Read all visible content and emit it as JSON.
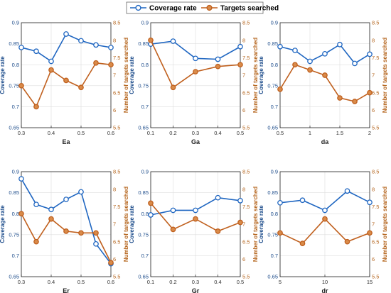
{
  "legend": {
    "coverage_label": "Coverage rate",
    "targets_label": "Targets searched"
  },
  "colors": {
    "coverage": "#1f66c1",
    "targets": "#c0601e",
    "targets_fill": "#d98b4a",
    "grid": "#dddddd",
    "axis": "#222222"
  },
  "chart_data": [
    {
      "type": "line",
      "xlabel": "Ea",
      "ylabel_left": "Coverage rate",
      "ylabel_right": "Number of targets searched",
      "xlim": [
        0.3,
        0.6
      ],
      "xticks": [
        "0.3",
        "0.4",
        "0.5",
        "0.6"
      ],
      "ylim_left": [
        0.65,
        0.9
      ],
      "yticks_left": [
        "0.65",
        "0.7",
        "0.75",
        "0.8",
        "0.85",
        "0.9"
      ],
      "ylim_right": [
        5.5,
        8.5
      ],
      "yticks_right": [
        "5.5",
        "6",
        "6.5",
        "7",
        "7.5",
        "8",
        "8.5"
      ],
      "grid": true,
      "x": [
        0.3,
        0.35,
        0.4,
        0.45,
        0.5,
        0.55,
        0.6
      ],
      "series": [
        {
          "name": "Coverage rate",
          "axis": "left",
          "values": [
            0.841,
            0.832,
            0.808,
            0.873,
            0.857,
            0.847,
            0.841
          ]
        },
        {
          "name": "Targets searched",
          "axis": "right",
          "values": [
            6.7,
            6.1,
            7.15,
            6.85,
            6.65,
            7.35,
            7.3
          ]
        }
      ]
    },
    {
      "type": "line",
      "xlabel": "Ga",
      "ylabel_left": "Coverage rate",
      "ylabel_right": "Number of targets searched",
      "xlim": [
        0.1,
        0.5
      ],
      "xticks": [
        "0.1",
        "0.2",
        "0.3",
        "0.4",
        "0.5"
      ],
      "ylim_left": [
        0.65,
        0.9
      ],
      "yticks_left": [
        "0.65",
        "0.7",
        "0.75",
        "0.8",
        "0.85",
        "0.9"
      ],
      "ylim_right": [
        5.5,
        8.5
      ],
      "yticks_right": [
        "5.5",
        "6",
        "6.5",
        "7",
        "7.5",
        "8",
        "8.5"
      ],
      "grid": true,
      "x": [
        0.1,
        0.2,
        0.3,
        0.4,
        0.5
      ],
      "series": [
        {
          "name": "Coverage rate",
          "axis": "left",
          "values": [
            0.849,
            0.856,
            0.815,
            0.813,
            0.843
          ]
        },
        {
          "name": "Targets searched",
          "axis": "right",
          "values": [
            8.0,
            6.65,
            7.1,
            7.25,
            7.3
          ]
        }
      ]
    },
    {
      "type": "line",
      "xlabel": "da",
      "ylabel_left": "Coverage rate",
      "ylabel_right": "Number of targets searched",
      "xlim": [
        0.5,
        2
      ],
      "xticks": [
        "0.5",
        "1",
        "1.5",
        "2"
      ],
      "ylim_left": [
        0.65,
        0.9
      ],
      "yticks_left": [
        "0.65",
        "0.7",
        "0.75",
        "0.8",
        "0.85",
        "0.9"
      ],
      "ylim_right": [
        5.5,
        8.5
      ],
      "yticks_right": [
        "5.5",
        "6",
        "6.5",
        "7",
        "7.5",
        "8",
        "8.5"
      ],
      "grid": true,
      "x": [
        0.5,
        0.75,
        1.0,
        1.25,
        1.5,
        1.75,
        2.0
      ],
      "series": [
        {
          "name": "Coverage rate",
          "axis": "left",
          "values": [
            0.843,
            0.834,
            0.808,
            0.826,
            0.848,
            0.803,
            0.825
          ]
        },
        {
          "name": "Targets searched",
          "axis": "right",
          "values": [
            6.6,
            7.3,
            7.15,
            7.0,
            6.35,
            6.25,
            6.5
          ]
        }
      ]
    },
    {
      "type": "line",
      "xlabel": "Er",
      "ylabel_left": "Coverage rate",
      "ylabel_right": "Number of targets searched",
      "xlim": [
        0.3,
        0.6
      ],
      "xticks": [
        "0.3",
        "0.4",
        "0.5",
        "0.6"
      ],
      "ylim_left": [
        0.65,
        0.9
      ],
      "yticks_left": [
        "0.65",
        "0.7",
        "0.75",
        "0.8",
        "0.85",
        "0.9"
      ],
      "ylim_right": [
        5.5,
        8.5
      ],
      "yticks_right": [
        "5.5",
        "6",
        "6.5",
        "7",
        "7.5",
        "8",
        "8.5"
      ],
      "grid": true,
      "x": [
        0.3,
        0.35,
        0.4,
        0.45,
        0.5,
        0.55,
        0.6
      ],
      "series": [
        {
          "name": "Coverage rate",
          "axis": "left",
          "values": [
            0.883,
            0.822,
            0.81,
            0.834,
            0.852,
            0.728,
            0.681
          ]
        },
        {
          "name": "Targets searched",
          "axis": "right",
          "values": [
            7.3,
            6.5,
            7.15,
            6.8,
            6.75,
            6.75,
            5.9
          ]
        }
      ]
    },
    {
      "type": "line",
      "xlabel": "Gr",
      "ylabel_left": "Coverage rate",
      "ylabel_right": "Number of targets searched",
      "xlim": [
        0.1,
        0.5
      ],
      "xticks": [
        "0.1",
        "0.2",
        "0.3",
        "0.4",
        "0.5"
      ],
      "ylim_left": [
        0.65,
        0.9
      ],
      "yticks_left": [
        "0.65",
        "0.7",
        "0.75",
        "0.8",
        "0.85",
        "0.9"
      ],
      "ylim_right": [
        5.5,
        8.5
      ],
      "yticks_right": [
        "5.5",
        "6",
        "6.5",
        "7",
        "7.5",
        "8",
        "8.5"
      ],
      "grid": true,
      "x": [
        0.1,
        0.2,
        0.3,
        0.4,
        0.5
      ],
      "series": [
        {
          "name": "Coverage rate",
          "axis": "left",
          "values": [
            0.797,
            0.808,
            0.808,
            0.838,
            0.831
          ]
        },
        {
          "name": "Targets searched",
          "axis": "right",
          "values": [
            7.6,
            6.85,
            7.15,
            6.8,
            7.05
          ]
        }
      ]
    },
    {
      "type": "line",
      "xlabel": "dr",
      "ylabel_left": "Coverage rate",
      "ylabel_right": "Number of targets searched",
      "xlim": [
        5,
        15
      ],
      "xticks": [
        "5",
        "10",
        "15"
      ],
      "ylim_left": [
        0.65,
        0.9
      ],
      "yticks_left": [
        "0.65",
        "0.7",
        "0.75",
        "0.8",
        "0.85",
        "0.9"
      ],
      "ylim_right": [
        5.5,
        8.5
      ],
      "yticks_right": [
        "5.5",
        "6",
        "6.5",
        "7",
        "7.5",
        "8",
        "8.5"
      ],
      "grid": true,
      "x": [
        5,
        7.5,
        10,
        12.5,
        15
      ],
      "series": [
        {
          "name": "Coverage rate",
          "axis": "left",
          "values": [
            0.826,
            0.832,
            0.808,
            0.854,
            0.827
          ]
        },
        {
          "name": "Targets searched",
          "axis": "right",
          "values": [
            6.75,
            6.45,
            7.15,
            6.5,
            6.75
          ]
        }
      ]
    }
  ]
}
